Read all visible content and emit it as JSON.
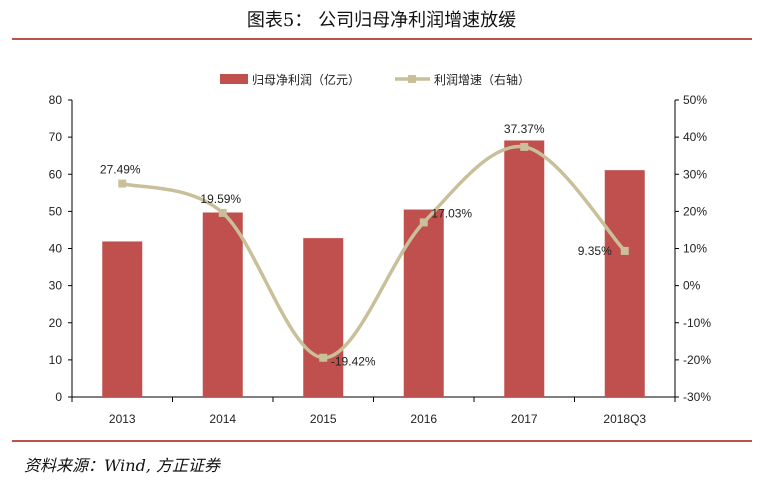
{
  "title": "图表5：  公司归母净利润增速放缓",
  "source": "资料来源：Wind, 方正证券",
  "chart_data": {
    "type": "bar+line",
    "categories": [
      "2013",
      "2014",
      "2015",
      "2016",
      "2017",
      "2018Q3"
    ],
    "series": [
      {
        "name": "归母净利润（亿元）",
        "type": "bar",
        "axis": "left",
        "color": "#c0504d",
        "values": [
          41.9,
          49.7,
          42.8,
          50.5,
          69.1,
          61.1
        ]
      },
      {
        "name": "利润增速（右轴）",
        "type": "line",
        "axis": "right",
        "color": "#c9c09a",
        "values": [
          27.49,
          19.59,
          -19.42,
          17.03,
          37.37,
          9.35
        ],
        "labels": [
          "27.49%",
          "19.59%",
          "-19.42%",
          "17.03%",
          "37.37%",
          "9.35%"
        ]
      }
    ],
    "ylim_left": [
      0,
      80
    ],
    "yticks_left": [
      "0",
      "10",
      "20",
      "30",
      "40",
      "50",
      "60",
      "70",
      "80"
    ],
    "ylim_right": [
      -30,
      50
    ],
    "yticks_right": [
      "-30%",
      "-20%",
      "-10%",
      "0%",
      "10%",
      "20%",
      "30%",
      "40%",
      "50%"
    ],
    "legend": "top-center",
    "grid": false
  }
}
